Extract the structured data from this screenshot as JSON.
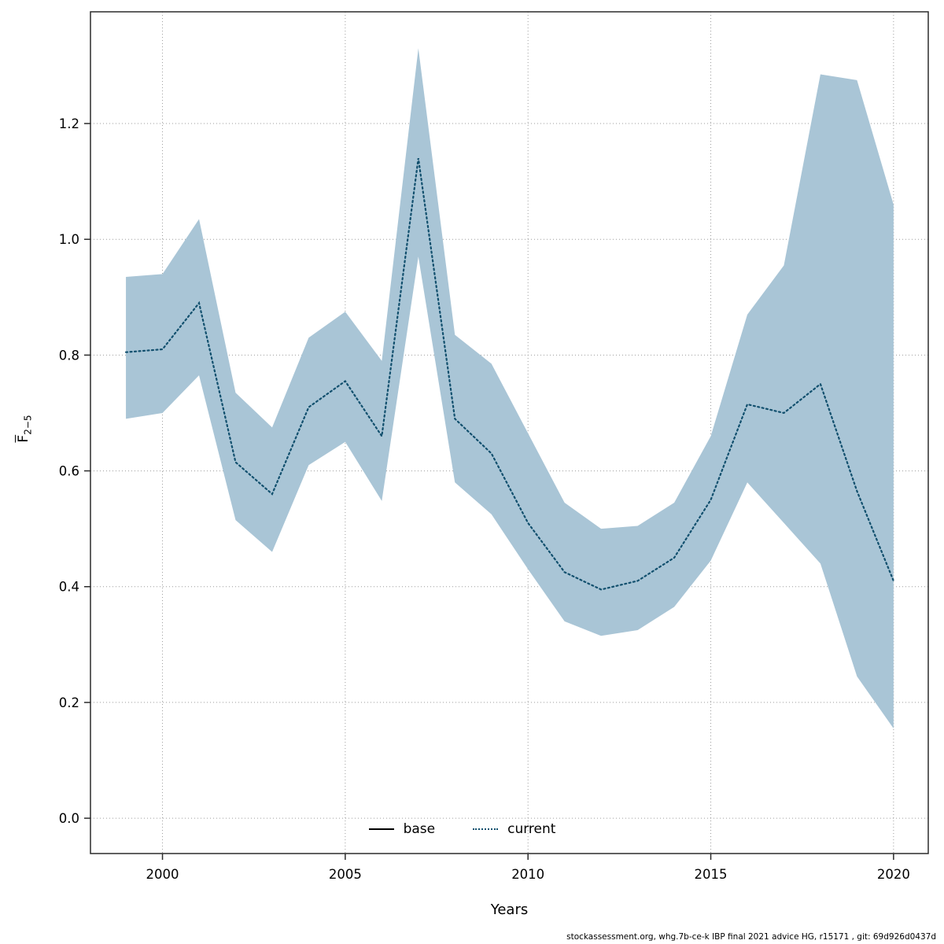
{
  "chart_data": {
    "type": "line",
    "title": "",
    "xlabel": "Years",
    "ylabel": "F̄2−5",
    "ylabel_parts": {
      "base": "F",
      "sub": "2−5"
    },
    "x": [
      1999,
      2000,
      2001,
      2002,
      2003,
      2004,
      2005,
      2006,
      2007,
      2008,
      2009,
      2010,
      2011,
      2012,
      2013,
      2014,
      2015,
      2016,
      2017,
      2018,
      2019,
      2020
    ],
    "series": [
      {
        "name": "current",
        "style": "dotted",
        "color": "#12506e",
        "values": [
          0.805,
          0.81,
          0.89,
          0.615,
          0.56,
          0.71,
          0.755,
          0.66,
          1.14,
          0.69,
          0.63,
          0.51,
          0.425,
          0.395,
          0.41,
          0.45,
          0.55,
          0.715,
          0.7,
          0.75,
          0.565,
          0.41
        ]
      }
    ],
    "band": {
      "color": "#a9c5d6",
      "lower": [
        0.69,
        0.7,
        0.765,
        0.515,
        0.46,
        0.61,
        0.65,
        0.548,
        0.97,
        0.58,
        0.525,
        0.43,
        0.34,
        0.315,
        0.325,
        0.365,
        0.445,
        0.58,
        0.51,
        0.44,
        0.245,
        0.155
      ],
      "upper": [
        0.935,
        0.94,
        1.035,
        0.735,
        0.675,
        0.83,
        0.875,
        0.79,
        1.33,
        0.835,
        0.785,
        0.665,
        0.545,
        0.5,
        0.505,
        0.545,
        0.66,
        0.87,
        0.955,
        1.285,
        1.275,
        1.06
      ]
    },
    "xticks": [
      2000,
      2005,
      2010,
      2015,
      2020
    ],
    "yticks": [
      0.0,
      0.2,
      0.4,
      0.6,
      0.8,
      1.0,
      1.2
    ],
    "xlim": [
      1998.03,
      2020.95
    ],
    "ylim": [
      -0.061,
      1.393
    ],
    "grid": true,
    "legend_position": "bottom-center",
    "legend": [
      {
        "label": "base",
        "style": "solid",
        "color": "#000000"
      },
      {
        "label": "current",
        "style": "dotted",
        "color": "#12506e"
      }
    ]
  },
  "colors": {
    "band": "#a9c5d6",
    "line": "#12506e",
    "grid": "#9c9c9c",
    "border": "#2b2b2b"
  },
  "footer": "stockassessment.org, whg.7b-ce-k IBP final 2021 advice HG, r15171 , git: 69d926d0437d"
}
